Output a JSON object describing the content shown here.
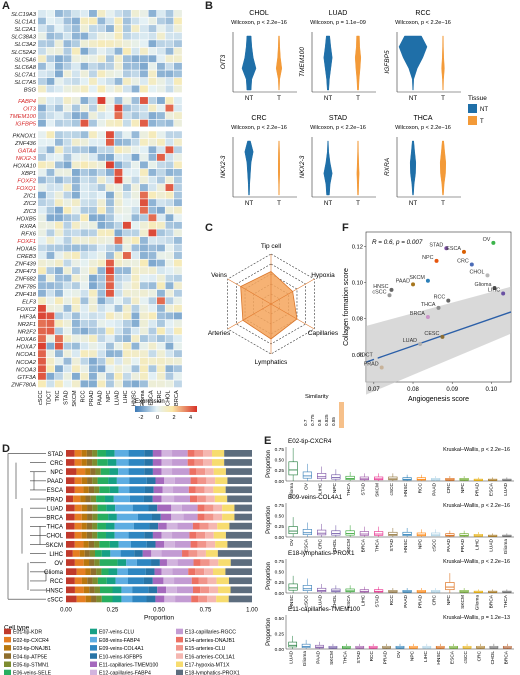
{
  "panels": {
    "A": "A",
    "B": "B",
    "C": "C",
    "D": "D",
    "E": "E",
    "F": "F"
  },
  "heatmap": {
    "genes": [
      "SLC19A3",
      "SLC1A1",
      "SLC2A1",
      "SLC38A3",
      "SLC3A2",
      "SLC52A2",
      "SLC5A6",
      "SLC6A8",
      "SLC7A1",
      "SLC7A5",
      "BSG",
      "FABP4",
      "OIT3",
      "TMEM100",
      "IGFBP5",
      "PKNOX1",
      "ZNF436",
      "GATA4",
      "NKX2-3",
      "HOXA10",
      "XBP1",
      "FOXF2",
      "FOXQ1",
      "ZIC1",
      "ZIC2",
      "ZIC3",
      "HOXB5",
      "RXRA",
      "RFX6",
      "FOXF1",
      "HOXA5",
      "CREB3",
      "ZNF439",
      "ZNF473",
      "ZNF682",
      "ZNF785",
      "ZNF418",
      "ELF3",
      "FOXC2",
      "HIF3A",
      "NR2F1",
      "NR2F2",
      "HOXA6",
      "HOXA7",
      "NCOA1",
      "NCOA2",
      "NCOA3",
      "GTF3A",
      "ZNF780A"
    ],
    "red_genes": [
      "FABP4",
      "OIT3",
      "TMEM100",
      "IGFBP5",
      "GATA4",
      "NKX2-3",
      "FOXF2",
      "FOXQ1",
      "FOXF1"
    ],
    "tissues": [
      "cSCC",
      "TDCT",
      "TKC",
      "STAD",
      "SKCM",
      "RCC",
      "PRAD",
      "PAAD",
      "NPC",
      "LUAD",
      "LIHC",
      "HNSC",
      "Glioma",
      "ESCA",
      "CRC",
      "CHOL",
      "BRCA"
    ],
    "legend_title": "Expression",
    "legend_ticks": [
      "-2",
      "0",
      "2",
      "4"
    ],
    "colors": {
      "low": "#3b78b5",
      "mid": "#e4f1f5",
      "high": "#d73027"
    }
  },
  "violins": {
    "y_label_italic": true,
    "x_categories": [
      "NT",
      "T"
    ],
    "plots": [
      {
        "title": "CHOL",
        "stat": "Wilcoxon, p < 2.2e−16",
        "gene": "OIT3"
      },
      {
        "title": "LUAD",
        "stat": "Wilcoxon, p = 1.1e−09",
        "gene": "TMEM100"
      },
      {
        "title": "RCC",
        "stat": "Wilcoxon, p < 2.2e−16",
        "gene": "IGFBP5"
      },
      {
        "title": "CRC",
        "stat": "Wilcoxon, p < 2.2e−16",
        "gene": "NKX2-3"
      },
      {
        "title": "STAD",
        "stat": "Wilcoxon, p < 2.2e−16",
        "gene": "NKX2-3"
      },
      {
        "title": "THCA",
        "stat": "Wilcoxon, p < 2.2e−16",
        "gene": "RXRA"
      }
    ],
    "legend_title": "Tissue",
    "legend": [
      {
        "label": "NT",
        "color": "#1f6fa8"
      },
      {
        "label": "T",
        "color": "#f39a38"
      }
    ]
  },
  "radar": {
    "axes": [
      "Tip cell",
      "Hypoxia",
      "Capillaries",
      "Lymphatics",
      "Arteries",
      "Veins"
    ],
    "values": [
      0.83,
      0.8,
      0.82,
      0.84,
      0.83,
      0.84
    ],
    "rmin": 0.7,
    "rmax": 0.9,
    "legend_title": "Similarity",
    "legend_ticks": [
      "0.7",
      "0.775",
      "0.8",
      "0.825",
      "0.85"
    ],
    "fill": "#f4a45c"
  },
  "chart_data": [
    {
      "type": "scatter",
      "panel": "F",
      "xlabel": "Angiogenesis score",
      "ylabel": "Collagen formation score",
      "annotation": "R = 0.6, p = 0.007",
      "xlim": [
        0.068,
        0.105
      ],
      "ylim": [
        0.045,
        0.128
      ],
      "xticks": [
        "0.07",
        "0.08",
        "0.09",
        "0.10"
      ],
      "yticks": [
        "0.06",
        "0.08",
        "0.10",
        "0.12"
      ],
      "points": [
        {
          "label": "OV",
          "x": 0.1005,
          "y": 0.122,
          "color": "#3cb44b"
        },
        {
          "label": "STAD",
          "x": 0.0885,
          "y": 0.119,
          "color": "#7b4fa3"
        },
        {
          "label": "ESCA",
          "x": 0.093,
          "y": 0.117,
          "color": "#d95f02"
        },
        {
          "label": "NPC",
          "x": 0.086,
          "y": 0.112,
          "color": "#e6550d"
        },
        {
          "label": "CRC",
          "x": 0.095,
          "y": 0.11,
          "color": "#4b6cb7"
        },
        {
          "label": "CHOL",
          "x": 0.099,
          "y": 0.104,
          "color": "#b8b8b8"
        },
        {
          "label": "SKCM",
          "x": 0.0838,
          "y": 0.101,
          "color": "#2c7fb8"
        },
        {
          "label": "PAAD",
          "x": 0.08,
          "y": 0.099,
          "color": "#a6761d"
        },
        {
          "label": "HNSC",
          "x": 0.0745,
          "y": 0.096,
          "color": "#666666"
        },
        {
          "label": "cSCC",
          "x": 0.074,
          "y": 0.093,
          "color": "#999999"
        },
        {
          "label": "Glioma",
          "x": 0.1008,
          "y": 0.097,
          "color": "#4a4a4a"
        },
        {
          "label": "LIHC",
          "x": 0.103,
          "y": 0.094,
          "color": "#6a51a3"
        },
        {
          "label": "RCC",
          "x": 0.089,
          "y": 0.09,
          "color": "#666666"
        },
        {
          "label": "THCA",
          "x": 0.0865,
          "y": 0.086,
          "color": "#8c8c8c"
        },
        {
          "label": "BRCA",
          "x": 0.0838,
          "y": 0.081,
          "color": "#c994c7"
        },
        {
          "label": "CESC",
          "x": 0.0875,
          "y": 0.07,
          "color": "#8c6d31"
        },
        {
          "label": "LUAD",
          "x": 0.0818,
          "y": 0.066,
          "color": "#b0b0b0"
        },
        {
          "label": "TDCT",
          "x": 0.0705,
          "y": 0.058,
          "color": "#d9d9d9"
        },
        {
          "label": "PRAD",
          "x": 0.072,
          "y": 0.053,
          "color": "#c7b299"
        }
      ]
    },
    {
      "type": "bar",
      "panel": "D",
      "stacked": true,
      "orientation": "horizontal",
      "xlabel": "Proportion",
      "xticks": [
        "0.00",
        "0.25",
        "0.50",
        "0.75",
        "1.00"
      ],
      "categories": [
        "STAD",
        "CRC",
        "NPC",
        "PAAD",
        "ESCA",
        "PRAD",
        "LUAD",
        "BRCA",
        "THCA",
        "CHOL",
        "SKCM",
        "LIHC",
        "OV",
        "Glioma",
        "RCC",
        "HNSC",
        "cSCC"
      ],
      "legend_title": "Cell type",
      "series": [
        {
          "name": "E01-tip-KDR",
          "color": "#c0392b",
          "values": [
            0.05,
            0.05,
            0.06,
            0.05,
            0.05,
            0.04,
            0.05,
            0.05,
            0.05,
            0.05,
            0.05,
            0.04,
            0.05,
            0.06,
            0.05,
            0.05,
            0.06
          ]
        },
        {
          "name": "E02-tip-CXCR4",
          "color": "#e67e22",
          "values": [
            0.04,
            0.04,
            0.05,
            0.04,
            0.05,
            0.04,
            0.04,
            0.04,
            0.04,
            0.04,
            0.05,
            0.04,
            0.05,
            0.05,
            0.04,
            0.05,
            0.05
          ]
        },
        {
          "name": "E03-tip-DNAJB1",
          "color": "#b9770e",
          "values": [
            0.03,
            0.03,
            0.03,
            0.03,
            0.03,
            0.03,
            0.03,
            0.03,
            0.03,
            0.03,
            0.03,
            0.03,
            0.03,
            0.03,
            0.03,
            0.03,
            0.03
          ]
        },
        {
          "name": "E04-tip-ATP5E",
          "color": "#8e6e2d",
          "values": [
            0.03,
            0.03,
            0.03,
            0.03,
            0.03,
            0.03,
            0.03,
            0.03,
            0.03,
            0.03,
            0.03,
            0.03,
            0.03,
            0.03,
            0.03,
            0.03,
            0.03
          ]
        },
        {
          "name": "E05-tip-STMN1",
          "color": "#7d8c2f",
          "values": [
            0.03,
            0.03,
            0.03,
            0.03,
            0.03,
            0.03,
            0.03,
            0.03,
            0.03,
            0.03,
            0.03,
            0.03,
            0.03,
            0.03,
            0.03,
            0.03,
            0.03
          ]
        },
        {
          "name": "E06-veins-SELE",
          "color": "#27ae60",
          "values": [
            0.05,
            0.06,
            0.05,
            0.06,
            0.06,
            0.05,
            0.05,
            0.06,
            0.05,
            0.05,
            0.06,
            0.04,
            0.1,
            0.04,
            0.05,
            0.07,
            0.06
          ]
        },
        {
          "name": "E07-veins-CLU",
          "color": "#16a085",
          "values": [
            0.05,
            0.05,
            0.05,
            0.05,
            0.05,
            0.05,
            0.05,
            0.05,
            0.05,
            0.05,
            0.05,
            0.05,
            0.05,
            0.05,
            0.05,
            0.05,
            0.05
          ]
        },
        {
          "name": "E08-veins-FABP4",
          "color": "#5dade2",
          "values": [
            0.08,
            0.07,
            0.06,
            0.07,
            0.06,
            0.09,
            0.1,
            0.12,
            0.11,
            0.08,
            0.07,
            0.06,
            0.06,
            0.06,
            0.07,
            0.06,
            0.06
          ]
        },
        {
          "name": "E09-veins-COL4A1",
          "color": "#2e86c1",
          "values": [
            0.09,
            0.09,
            0.09,
            0.1,
            0.09,
            0.08,
            0.09,
            0.08,
            0.09,
            0.09,
            0.09,
            0.08,
            0.08,
            0.1,
            0.09,
            0.09,
            0.08
          ]
        },
        {
          "name": "E10-veins-IGFBP5",
          "color": "#2874a6",
          "values": [
            0.05,
            0.05,
            0.05,
            0.05,
            0.05,
            0.05,
            0.05,
            0.05,
            0.05,
            0.05,
            0.05,
            0.05,
            0.05,
            0.05,
            0.05,
            0.05,
            0.05
          ]
        },
        {
          "name": "E11-capillaries-TMEM100",
          "color": "#a569bd",
          "values": [
            0.05,
            0.05,
            0.05,
            0.05,
            0.05,
            0.05,
            0.08,
            0.06,
            0.05,
            0.05,
            0.05,
            0.05,
            0.04,
            0.04,
            0.06,
            0.05,
            0.05
          ]
        },
        {
          "name": "E12-capillaries-FABP4",
          "color": "#d2b4de",
          "values": [
            0.06,
            0.06,
            0.06,
            0.06,
            0.06,
            0.07,
            0.06,
            0.07,
            0.06,
            0.06,
            0.06,
            0.06,
            0.06,
            0.06,
            0.06,
            0.06,
            0.06
          ]
        },
        {
          "name": "E13-capillaries-RGCC",
          "color": "#c39bd3",
          "values": [
            0.09,
            0.09,
            0.1,
            0.09,
            0.09,
            0.09,
            0.09,
            0.08,
            0.09,
            0.1,
            0.09,
            0.12,
            0.09,
            0.09,
            0.1,
            0.09,
            0.09
          ]
        },
        {
          "name": "E14-arteries-DNAJB1",
          "color": "#ec7063",
          "values": [
            0.04,
            0.04,
            0.04,
            0.04,
            0.04,
            0.04,
            0.04,
            0.04,
            0.04,
            0.04,
            0.04,
            0.04,
            0.04,
            0.04,
            0.04,
            0.04,
            0.04
          ]
        },
        {
          "name": "E15-arteries-CLU",
          "color": "#f1948a",
          "values": [
            0.05,
            0.05,
            0.05,
            0.05,
            0.05,
            0.05,
            0.05,
            0.05,
            0.05,
            0.05,
            0.05,
            0.05,
            0.05,
            0.05,
            0.05,
            0.05,
            0.05
          ]
        },
        {
          "name": "E16-arteries-COL1A1",
          "color": "#f5b7b1",
          "values": [
            0.05,
            0.05,
            0.05,
            0.05,
            0.05,
            0.05,
            0.05,
            0.05,
            0.05,
            0.05,
            0.05,
            0.05,
            0.05,
            0.05,
            0.05,
            0.05,
            0.05
          ]
        },
        {
          "name": "E17-hypoxia-MT1X",
          "color": "#f7dc6f",
          "values": [
            0.07,
            0.07,
            0.07,
            0.07,
            0.07,
            0.07,
            0.07,
            0.07,
            0.07,
            0.07,
            0.07,
            0.07,
            0.07,
            0.07,
            0.07,
            0.07,
            0.07
          ]
        },
        {
          "name": "E18-lymphatics-PROX1",
          "color": "#5d6d7e",
          "values": [
            0.16,
            0.16,
            0.15,
            0.14,
            0.15,
            0.14,
            0.1,
            0.1,
            0.13,
            0.15,
            0.14,
            0.2,
            0.12,
            0.15,
            0.13,
            0.12,
            0.13
          ]
        }
      ]
    },
    {
      "type": "box",
      "panel": "E",
      "ylabel": "Proportion",
      "subplots": [
        {
          "title": "E02-tip-CXCR4",
          "stat": "Kruskal–Wallis, p < 2.2e−16",
          "yticks": [
            "0.00",
            "0.25",
            "0.50",
            "0.75"
          ],
          "ymax": 0.8,
          "categories": [
            "Glioma",
            "OV",
            "LIHC",
            "NPC",
            "THCA",
            "STAD",
            "SKCM",
            "cSCC",
            "HNSC",
            "RCC",
            "PAAD",
            "CRC",
            "NPC",
            "PRAD",
            "ESCA",
            "LUAD"
          ],
          "medians": [
            0.26,
            0.12,
            0.1,
            0.08,
            0.06,
            0.05,
            0.05,
            0.05,
            0.04,
            0.04,
            0.03,
            0.03,
            0.03,
            0.02,
            0.02,
            0.02
          ]
        },
        {
          "title": "E09-veins-COL4A1",
          "stat": "Kruskal–Wallis, p < 2.2e−16",
          "yticks": [
            "0.00",
            "0.25",
            "0.50",
            "0.75"
          ],
          "ymax": 0.8,
          "categories": [
            "OV",
            "ESCA",
            "CRC",
            "CHOL",
            "SKCM",
            "BRCA",
            "THCA",
            "STAD",
            "HNSC",
            "NPC",
            "cSCC",
            "PAAD",
            "PRAD",
            "LIHC",
            "LUAD",
            "Glioma"
          ],
          "medians": [
            0.14,
            0.1,
            0.09,
            0.08,
            0.08,
            0.07,
            0.07,
            0.06,
            0.06,
            0.05,
            0.05,
            0.04,
            0.04,
            0.03,
            0.02,
            0.02
          ]
        },
        {
          "title": "E18-lymphatics-PROX1",
          "stat": "Kruskal–Wallis, p < 2.2e−16",
          "yticks": [
            "0.00",
            "0.25",
            "0.50",
            "0.75"
          ],
          "ymax": 0.8,
          "categories": [
            "HNSC",
            "cSCC",
            "LUAD",
            "CHOL",
            "ESCA",
            "LIHC",
            "STAD",
            "RCC",
            "PAAD",
            "PRAD",
            "CRC",
            "NPC",
            "SKCM",
            "Glioma",
            "BRCA",
            "THCA"
          ],
          "medians": [
            0.12,
            0.1,
            0.06,
            0.05,
            0.05,
            0.04,
            0.04,
            0.03,
            0.03,
            0.03,
            0.03,
            0.14,
            0.03,
            0.02,
            0.02,
            0.02
          ]
        },
        {
          "title": "E11-capillaries-TMEM100",
          "stat": "Kruskal–Wallis, p = 1.2e−13",
          "yticks": [
            "0.00",
            "0.25",
            "0.50"
          ],
          "ymax": 0.55,
          "categories": [
            "LUAD",
            "Glioma",
            "PAAD",
            "SKCM",
            "THCA",
            "STAD",
            "RCC",
            "PRAD",
            "OV",
            "NPC",
            "LIHC",
            "HNSC",
            "ESCA",
            "cSCC",
            "CRC",
            "CHOL",
            "BRCA"
          ],
          "medians": [
            0.06,
            0.04,
            0.03,
            0.02,
            0.02,
            0.02,
            0.02,
            0.02,
            0.02,
            0.02,
            0.02,
            0.02,
            0.02,
            0.02,
            0.02,
            0.02,
            0.02
          ]
        }
      ]
    }
  ]
}
